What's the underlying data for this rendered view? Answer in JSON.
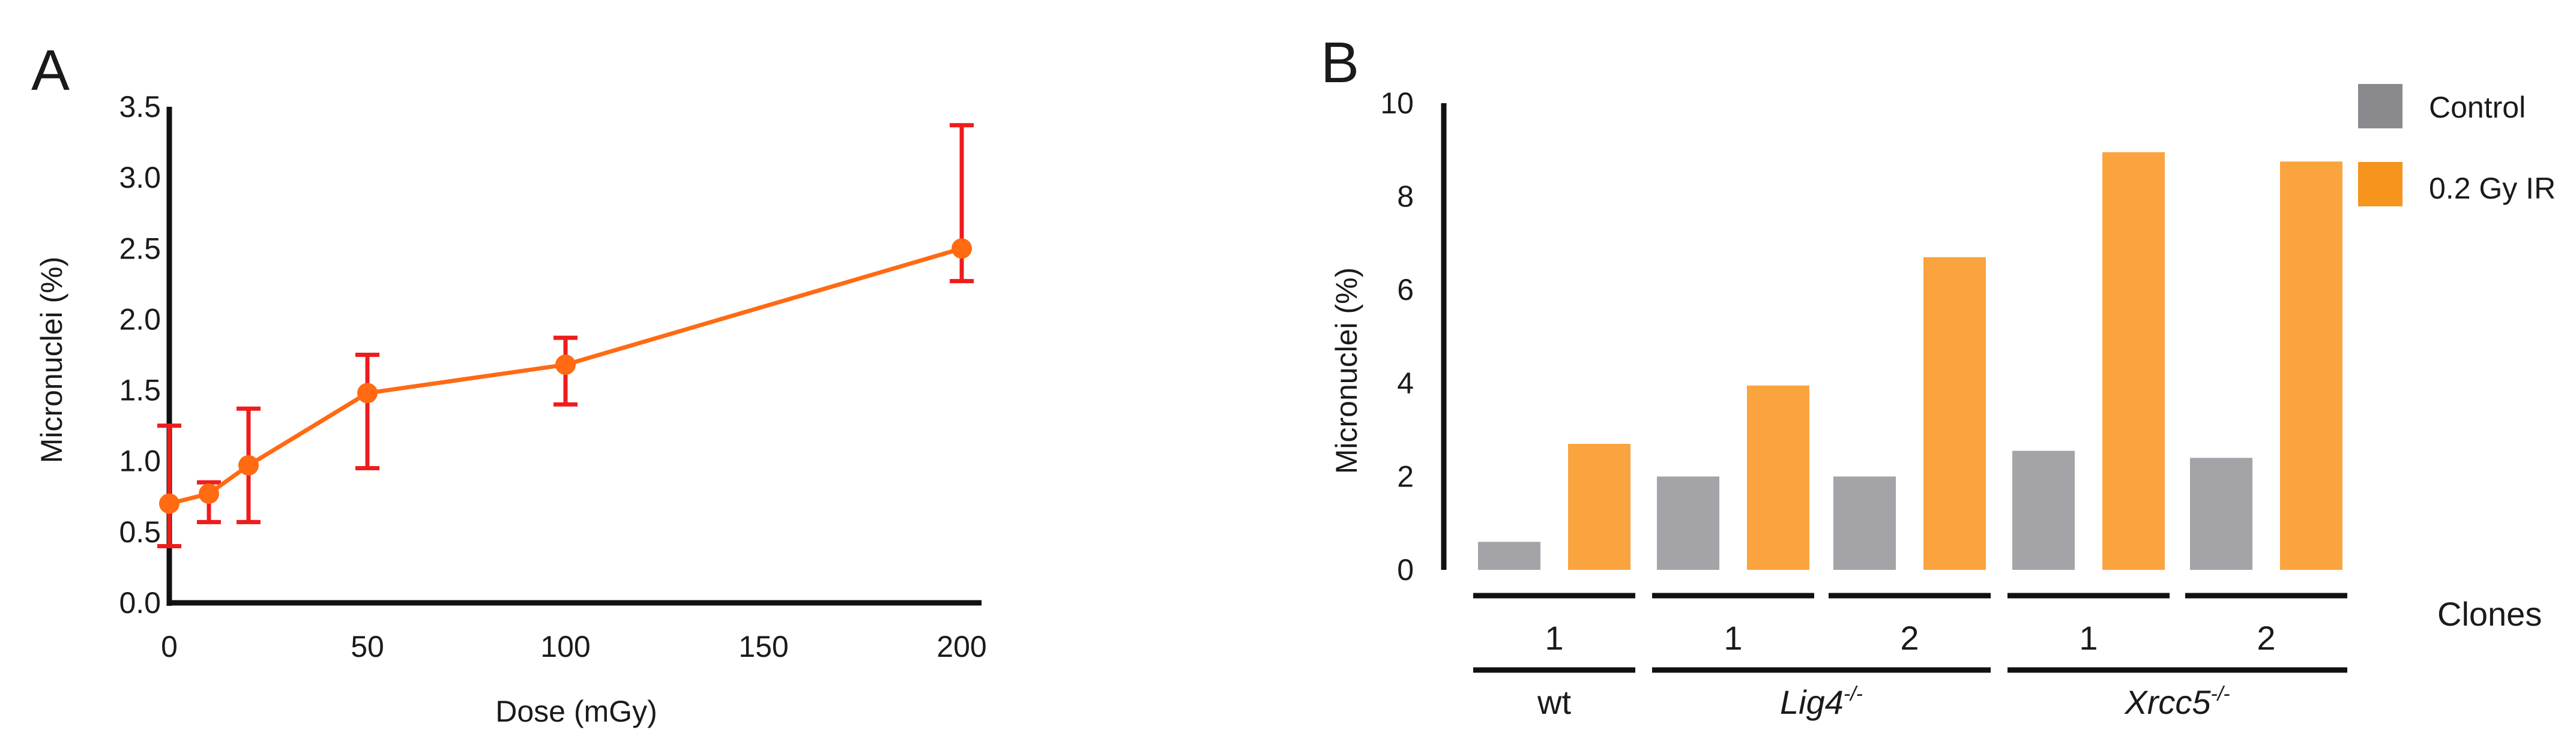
{
  "colors": {
    "line": "#ff6a13",
    "marker": "#ff6a13",
    "error_bar": "#ee1c1c",
    "axis": "#111111",
    "control_bar": "#a4a3a8",
    "ir_bar": "#fba33f",
    "legend_control": "#8a898d",
    "legend_ir": "#f7941d",
    "group_line": "#111111"
  },
  "panels": {
    "a": {
      "letter": "A"
    },
    "b": {
      "letter": "B",
      "clones_label": "Clones"
    }
  },
  "chart_data": [
    {
      "type": "line",
      "panel": "A",
      "xlabel": "Dose (mGy)",
      "ylabel": "Micronuclei (%)",
      "xlim": [
        0,
        205
      ],
      "ylim": [
        0,
        3.5
      ],
      "xticks": [
        0,
        50,
        100,
        150,
        200
      ],
      "yticks": [
        0.0,
        0.5,
        1.0,
        1.5,
        2.0,
        2.5,
        3.0,
        3.5
      ],
      "xtick_labels": [
        "0",
        "50",
        "100",
        "150",
        "200"
      ],
      "ytick_labels": [
        "0.0",
        "0.5",
        "1.0",
        "1.5",
        "2.0",
        "2.5",
        "3.0",
        "3.5"
      ],
      "grid": false,
      "x": [
        0,
        10,
        20,
        50,
        100,
        200
      ],
      "y": [
        0.7,
        0.77,
        0.97,
        1.48,
        1.68,
        2.5
      ],
      "error_low": [
        0.4,
        0.57,
        0.57,
        0.95,
        1.4,
        2.27
      ],
      "error_high": [
        1.25,
        0.85,
        1.37,
        1.75,
        1.87,
        3.37
      ]
    },
    {
      "type": "bar",
      "panel": "B",
      "ylabel": "Micronuclei (%)",
      "ylim": [
        0,
        10
      ],
      "yticks": [
        0,
        2,
        4,
        6,
        8,
        10
      ],
      "ytick_labels": [
        "0",
        "2",
        "4",
        "6",
        "8",
        "10"
      ],
      "grid": false,
      "legend_position": "top-right",
      "categories": [
        "1",
        "1",
        "2",
        "1",
        "2"
      ],
      "groups": [
        {
          "label": "wt",
          "italic": false,
          "superscript": "",
          "clones": [
            "1"
          ]
        },
        {
          "label": "Lig4",
          "italic": true,
          "superscript": "-/-",
          "clones": [
            "1",
            "2"
          ]
        },
        {
          "label": "Xrcc5",
          "italic": true,
          "superscript": "-/-",
          "clones": [
            "1",
            "2"
          ]
        }
      ],
      "series": [
        {
          "name": "Control",
          "values": [
            0.6,
            2.0,
            2.0,
            2.55,
            2.4
          ]
        },
        {
          "name": "0.2 Gy IR",
          "values": [
            2.7,
            3.95,
            6.7,
            8.95,
            8.75
          ]
        }
      ]
    }
  ]
}
